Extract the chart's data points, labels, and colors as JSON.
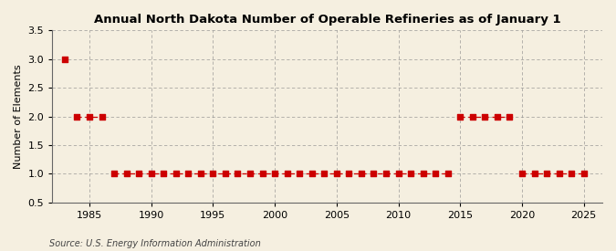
{
  "title": "Annual North Dakota Number of Operable Refineries as of January 1",
  "ylabel": "Number of Elements",
  "source": "Source: U.S. Energy Information Administration",
  "background_color": "#f5efe0",
  "line_color": "#cc0000",
  "grid_color": "#888888",
  "xlim": [
    1982,
    2026.5
  ],
  "ylim": [
    0.5,
    3.5
  ],
  "yticks": [
    0.5,
    1.0,
    1.5,
    2.0,
    2.5,
    3.0,
    3.5
  ],
  "xticks": [
    1985,
    1990,
    1995,
    2000,
    2005,
    2010,
    2015,
    2020,
    2025
  ],
  "years": [
    1983,
    1984,
    1985,
    1986,
    1987,
    1988,
    1989,
    1990,
    1991,
    1992,
    1993,
    1994,
    1995,
    1996,
    1997,
    1998,
    1999,
    2000,
    2001,
    2002,
    2003,
    2004,
    2005,
    2006,
    2007,
    2008,
    2009,
    2010,
    2011,
    2012,
    2013,
    2014,
    2015,
    2016,
    2017,
    2018,
    2019,
    2020,
    2021,
    2022,
    2023,
    2024,
    2025
  ],
  "values": [
    3,
    2,
    2,
    2,
    1,
    1,
    1,
    1,
    1,
    1,
    1,
    1,
    1,
    1,
    1,
    1,
    1,
    1,
    1,
    1,
    1,
    1,
    1,
    1,
    1,
    1,
    1,
    1,
    1,
    1,
    1,
    1,
    2,
    2,
    2,
    2,
    2,
    1,
    1,
    1,
    1,
    1,
    1
  ],
  "title_fontsize": 9.5,
  "ylabel_fontsize": 8,
  "tick_fontsize": 8,
  "source_fontsize": 7
}
